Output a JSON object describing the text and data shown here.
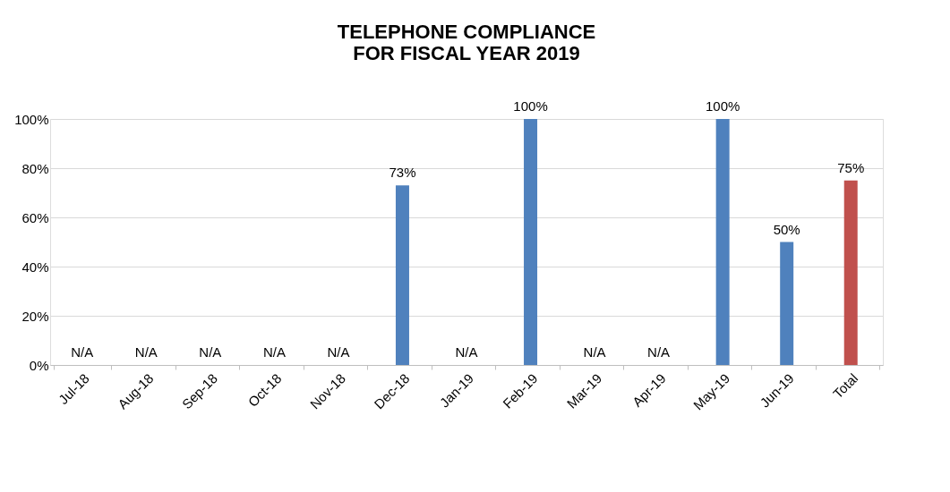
{
  "chart_data": {
    "type": "bar",
    "title": "TELEPHONE COMPLIANCE\nFOR FISCAL YEAR 2019",
    "categories": [
      "Jul-18",
      "Aug-18",
      "Sep-18",
      "Oct-18",
      "Nov-18",
      "Dec-18",
      "Jan-19",
      "Feb-19",
      "Mar-19",
      "Apr-19",
      "May-19",
      "Jun-19",
      "Total"
    ],
    "values": [
      null,
      null,
      null,
      null,
      null,
      73,
      null,
      100,
      null,
      null,
      100,
      50,
      75
    ],
    "value_labels": [
      "N/A",
      "N/A",
      "N/A",
      "N/A",
      "N/A",
      "73%",
      "N/A",
      "100%",
      "N/A",
      "N/A",
      "100%",
      "50%",
      "75%"
    ],
    "colors": [
      "#4f81bd",
      "#4f81bd",
      "#4f81bd",
      "#4f81bd",
      "#4f81bd",
      "#4f81bd",
      "#4f81bd",
      "#4f81bd",
      "#4f81bd",
      "#4f81bd",
      "#4f81bd",
      "#4f81bd",
      "#c0504d"
    ],
    "ylim": [
      0,
      100
    ],
    "yticks": [
      {
        "value": 0,
        "label": "0%"
      },
      {
        "value": 20,
        "label": "20%"
      },
      {
        "value": 40,
        "label": "40%"
      },
      {
        "value": 60,
        "label": "60%"
      },
      {
        "value": 80,
        "label": "80%"
      },
      {
        "value": 100,
        "label": "100%"
      }
    ],
    "grid": "y"
  }
}
